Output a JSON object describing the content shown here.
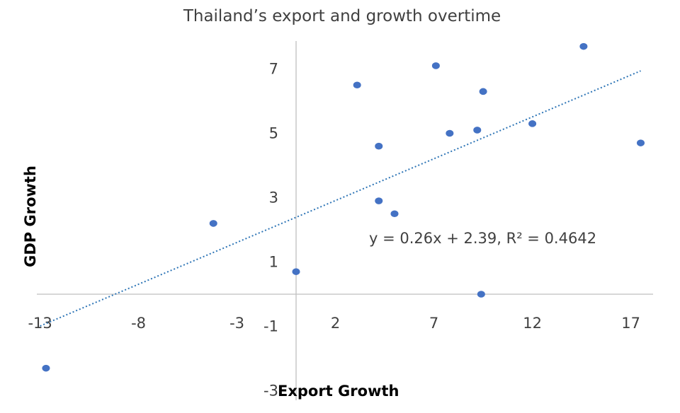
{
  "chart_data": {
    "type": "scatter",
    "title": "Thailand’s export and growth overtime",
    "xlabel": "Export Growth",
    "ylabel": "GDP Growth",
    "xlim": [
      -13,
      18
    ],
    "ylim": [
      -3,
      8
    ],
    "x_ticks": [
      "-13",
      "-8",
      "-3",
      "2",
      "7",
      "12",
      "17"
    ],
    "y_ticks": [
      "-3",
      "-1",
      "1",
      "3",
      "5",
      "7"
    ],
    "x_tick_values": [
      -13,
      -8,
      -3,
      2,
      7,
      12,
      17
    ],
    "y_tick_values": [
      -3,
      -1,
      1,
      3,
      5,
      7
    ],
    "points": [
      {
        "x": -12.7,
        "y": -2.3
      },
      {
        "x": -4.2,
        "y": 2.2
      },
      {
        "x": 0.0,
        "y": 0.7
      },
      {
        "x": 3.1,
        "y": 6.5
      },
      {
        "x": 4.2,
        "y": 4.6
      },
      {
        "x": 4.2,
        "y": 2.9
      },
      {
        "x": 5.0,
        "y": 2.5
      },
      {
        "x": 7.1,
        "y": 7.1
      },
      {
        "x": 7.8,
        "y": 5.0
      },
      {
        "x": 9.2,
        "y": 5.1
      },
      {
        "x": 9.5,
        "y": 6.3
      },
      {
        "x": 9.4,
        "y": 0.0
      },
      {
        "x": 12.0,
        "y": 5.3
      },
      {
        "x": 14.6,
        "y": 7.7
      },
      {
        "x": 17.5,
        "y": 4.7
      }
    ],
    "trendline": {
      "slope": 0.26,
      "intercept": 2.39,
      "x_range": [
        -13,
        17.5
      ],
      "equation": "y = 0.26x + 2.39, R² = 0.4642"
    },
    "grid": false,
    "marker_color": "#4472C4",
    "trend_color": "#2E75B6"
  }
}
